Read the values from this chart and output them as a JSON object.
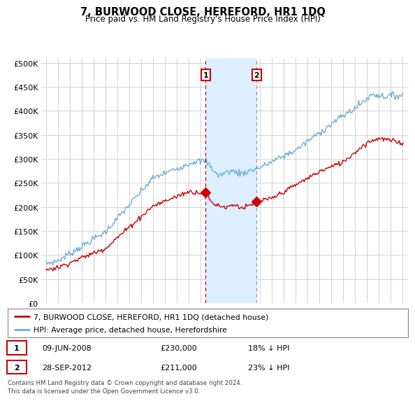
{
  "title": "7, BURWOOD CLOSE, HEREFORD, HR1 1DQ",
  "subtitle": "Price paid vs. HM Land Registry's House Price Index (HPI)",
  "ytick_values": [
    0,
    50000,
    100000,
    150000,
    200000,
    250000,
    300000,
    350000,
    400000,
    450000,
    500000
  ],
  "ylim": [
    0,
    510000
  ],
  "hpi_color": "#6baed6",
  "price_color": "#cc0000",
  "marker1_date": 2008.44,
  "marker2_date": 2012.74,
  "marker1_price": 230000,
  "marker2_price": 211000,
  "sale1_label": "09-JUN-2008",
  "sale1_price": "£230,000",
  "sale1_hpi": "18% ↓ HPI",
  "sale2_label": "28-SEP-2012",
  "sale2_price": "£211,000",
  "sale2_hpi": "23% ↓ HPI",
  "legend_line1": "7, BURWOOD CLOSE, HEREFORD, HR1 1DQ (detached house)",
  "legend_line2": "HPI: Average price, detached house, Herefordshire",
  "footnote": "Contains HM Land Registry data © Crown copyright and database right 2024.\nThis data is licensed under the Open Government Licence v3.0.",
  "background_color": "#ffffff",
  "grid_color": "#d0d0d0",
  "shaded_region_color": "#ddeeff"
}
